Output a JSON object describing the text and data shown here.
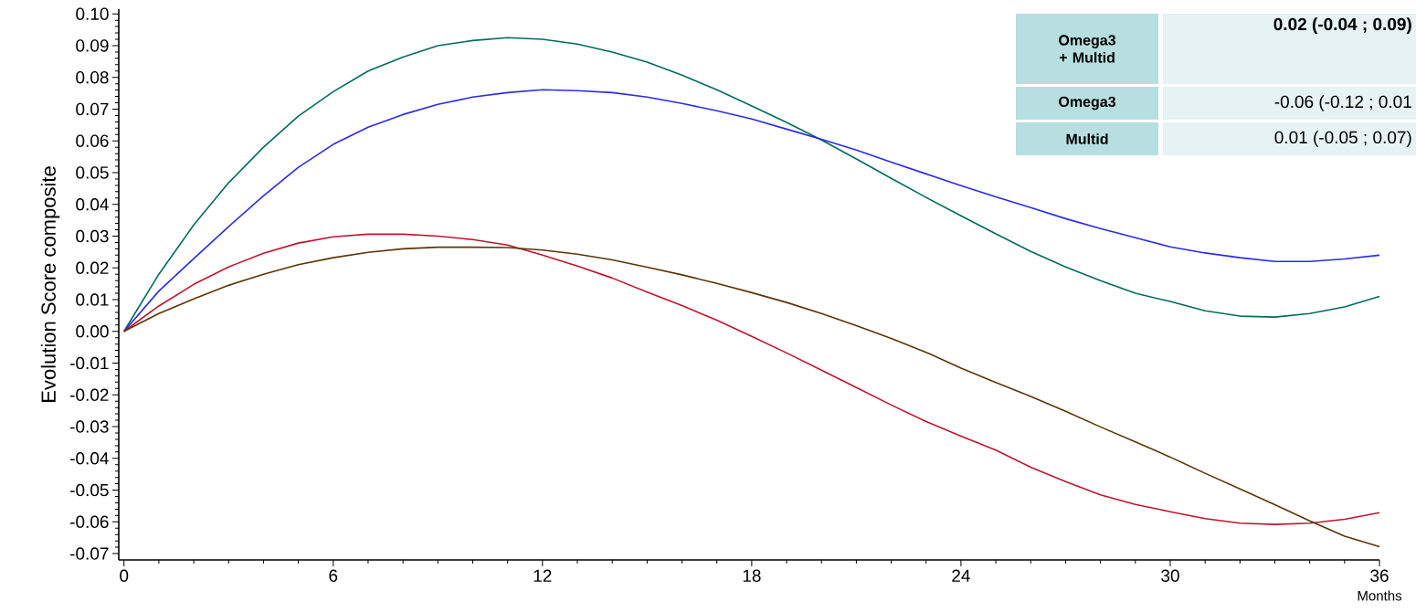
{
  "chart_data": {
    "type": "line",
    "ylabel": "Evolution Score composite",
    "xlabel": "Months",
    "xlim": [
      -0.15,
      36
    ],
    "xticks": [
      0,
      6,
      12,
      18,
      24,
      30,
      36
    ],
    "ylim": [
      -0.072,
      0.1015
    ],
    "yticks": [
      {
        "value": 0.1,
        "label": "0.10"
      },
      {
        "value": 0.09,
        "label": "0.09"
      },
      {
        "value": 0.08,
        "label": "0.08"
      },
      {
        "value": 0.07,
        "label": "0.07"
      },
      {
        "value": 0.06,
        "label": "0.06"
      },
      {
        "value": 0.05,
        "label": "0.05"
      },
      {
        "value": 0.04,
        "label": "0.04"
      },
      {
        "value": 0.03,
        "label": "0.03"
      },
      {
        "value": 0.02,
        "label": "0.02"
      },
      {
        "value": 0.01,
        "label": "0.01"
      },
      {
        "value": 0,
        "label": "0.00"
      },
      {
        "value": -0.01,
        "label": "-0.01"
      },
      {
        "value": -0.02,
        "label": "-0.02"
      },
      {
        "value": -0.03,
        "label": "-0.03"
      },
      {
        "value": -0.04,
        "label": "-0.04"
      },
      {
        "value": -0.05,
        "label": "-0.05"
      },
      {
        "value": -0.06,
        "label": "-0.06"
      },
      {
        "value": -0.07,
        "label": "-0.07"
      }
    ],
    "x": [
      0,
      1,
      2,
      3,
      4,
      5,
      6,
      7,
      8,
      9,
      10,
      11,
      12,
      13,
      14,
      15,
      16,
      17,
      18,
      19,
      20,
      21,
      22,
      23,
      24,
      25,
      26,
      27,
      28,
      29,
      30,
      31,
      32,
      33,
      34,
      35,
      36
    ],
    "series": [
      {
        "color": "#006b5e",
        "values": [
          0,
          0.018,
          0.0335,
          0.0468,
          0.058,
          0.0678,
          0.0755,
          0.082,
          0.0864,
          0.09,
          0.0916,
          0.0925,
          0.092,
          0.0905,
          0.088,
          0.0848,
          0.0807,
          0.0761,
          0.071,
          0.0658,
          0.0603,
          0.0543,
          0.0482,
          0.0422,
          0.0364,
          0.0307,
          0.0252,
          0.0203,
          0.016,
          0.012,
          0.0094,
          0.0065,
          0.0048,
          0.0045,
          0.0056,
          0.0077,
          0.011
        ]
      },
      {
        "color": "#2b2be6",
        "values": [
          0,
          0.0127,
          0.0229,
          0.033,
          0.0427,
          0.0517,
          0.0589,
          0.0643,
          0.0683,
          0.0715,
          0.0738,
          0.0752,
          0.0761,
          0.0758,
          0.0752,
          0.0738,
          0.0718,
          0.0695,
          0.0669,
          0.0637,
          0.0605,
          0.0571,
          0.0533,
          0.0496,
          0.0459,
          0.0424,
          0.039,
          0.0355,
          0.0324,
          0.0295,
          0.0266,
          0.0247,
          0.0232,
          0.022,
          0.022,
          0.0228,
          0.024
        ]
      },
      {
        "color": "#c0142e",
        "values": [
          0,
          0.008,
          0.0148,
          0.0203,
          0.0246,
          0.0278,
          0.0298,
          0.0306,
          0.0306,
          0.03,
          0.0289,
          0.0272,
          0.024,
          0.0206,
          0.0168,
          0.0124,
          0.0081,
          0.0035,
          -0.0016,
          -0.0068,
          -0.0122,
          -0.0177,
          -0.0232,
          -0.0284,
          -0.033,
          -0.0374,
          -0.0428,
          -0.0473,
          -0.0515,
          -0.0545,
          -0.0568,
          -0.059,
          -0.0604,
          -0.0608,
          -0.0604,
          -0.0592,
          -0.0571
        ]
      },
      {
        "color": "#5a3608",
        "values": [
          0,
          0.0056,
          0.0102,
          0.0145,
          0.018,
          0.021,
          0.0232,
          0.0249,
          0.026,
          0.0265,
          0.0265,
          0.0264,
          0.0256,
          0.0243,
          0.0225,
          0.0202,
          0.0178,
          0.0151,
          0.0122,
          0.0091,
          0.0056,
          0.0018,
          -0.0022,
          -0.0066,
          -0.0116,
          -0.0161,
          -0.0205,
          -0.0252,
          -0.0301,
          -0.0348,
          -0.0396,
          -0.0447,
          -0.0496,
          -0.0546,
          -0.0597,
          -0.0645,
          -0.0678
        ]
      }
    ],
    "annotations": [
      "Omega3 + Multid",
      "0.02 (-0.04 ; 0.09)",
      "Omega3",
      "-0.06 (-0.12 ; 0.01",
      "Multid",
      "0.01 (-0.05 ; 0.07)"
    ]
  }
}
